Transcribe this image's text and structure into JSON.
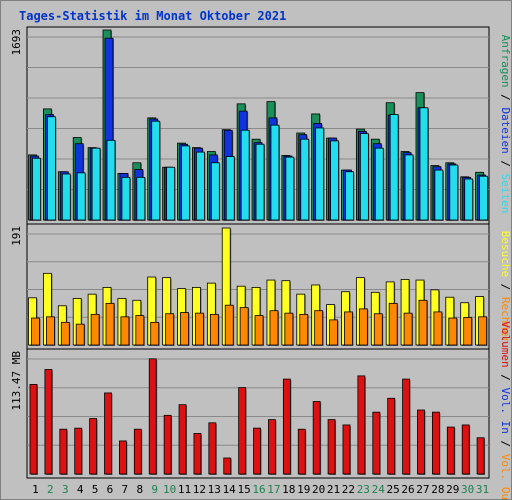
{
  "title": "Tages-Statistik im Monat Oktober 2021",
  "colors": {
    "anfragen": "#1a8f5a",
    "dateien": "#1133dd",
    "seiten": "#22ddee",
    "besuche": "#ffff22",
    "rechner": "#ff8800",
    "volumen": "#dd1111",
    "weekend_day": "#208050",
    "weekday": "#000000",
    "background": "#c0c0c0"
  },
  "chart_data": [
    {
      "type": "bar",
      "name": "top-panel",
      "ymax_label": "1693",
      "ymax": 1693,
      "right_label": [
        {
          "text": "Anfragen",
          "color": "#1a8f5a"
        },
        {
          "text": " / ",
          "color": "#000000"
        },
        {
          "text": "Dateien",
          "color": "#1133dd"
        },
        {
          "text": " / ",
          "color": "#000000"
        },
        {
          "text": "Seiten",
          "color": "#22ddee"
        }
      ],
      "series": [
        {
          "name": "Anfragen",
          "values": [
            580,
            990,
            430,
            735,
            645,
            1693,
            415,
            510,
            910,
            470,
            685,
            645,
            610,
            805,
            1035,
            720,
            1055,
            575,
            775,
            945,
            730,
            445,
            810,
            720,
            1045,
            610,
            1135,
            485,
            510,
            385,
            425
          ]
        },
        {
          "name": "Dateien",
          "values": [
            570,
            940,
            430,
            680,
            640,
            1620,
            415,
            450,
            900,
            470,
            675,
            640,
            580,
            800,
            970,
            690,
            910,
            570,
            760,
            860,
            730,
            445,
            790,
            680,
            935,
            600,
            1000,
            475,
            500,
            380,
            400
          ]
        },
        {
          "name": "Seiten",
          "values": [
            550,
            920,
            410,
            420,
            640,
            710,
            380,
            380,
            880,
            470,
            660,
            605,
            510,
            565,
            800,
            675,
            845,
            560,
            720,
            820,
            705,
            430,
            770,
            640,
            940,
            580,
            1000,
            445,
            490,
            365,
            390
          ]
        }
      ]
    },
    {
      "type": "bar",
      "name": "middle-panel",
      "ymax_label": "191",
      "ymax": 191,
      "right_label": [
        {
          "text": "Besuche",
          "color": "#ffff22"
        },
        {
          "text": " / ",
          "color": "#000000"
        },
        {
          "text": "Rechner",
          "color": "#ff8800"
        }
      ],
      "series": [
        {
          "name": "Besuche",
          "values": [
            77,
            117,
            64,
            76,
            83,
            94,
            76,
            73,
            111,
            110,
            92,
            94,
            101,
            191,
            96,
            94,
            106,
            105,
            83,
            98,
            66,
            87,
            110,
            86,
            103,
            107,
            106,
            90,
            78,
            69,
            79
          ]
        },
        {
          "name": "Rechner",
          "values": [
            44,
            46,
            37,
            34,
            50,
            68,
            46,
            48,
            37,
            51,
            53,
            52,
            50,
            65,
            61,
            48,
            56,
            52,
            50,
            56,
            41,
            54,
            59,
            51,
            68,
            52,
            73,
            54,
            44,
            45,
            46
          ]
        }
      ]
    },
    {
      "type": "bar",
      "name": "bottom-panel",
      "ymax_label": "113.47 MB",
      "ymax": 113.47,
      "right_label": [
        {
          "text": "Volumen",
          "color": "#dd1111"
        },
        {
          "text": " / ",
          "color": "#000000"
        },
        {
          "text": "Vol. In",
          "color": "#1133dd"
        },
        {
          "text": " / ",
          "color": "#000000"
        },
        {
          "text": "Vol. Out",
          "color": "#ff8800"
        }
      ],
      "series": [
        {
          "name": "Volumen",
          "values": [
            84,
            98,
            42,
            43,
            52,
            76,
            31,
            42,
            108,
            55,
            65,
            38,
            48,
            15,
            81,
            43,
            51,
            89,
            42,
            68,
            51,
            46,
            92,
            58,
            71,
            89,
            60,
            58,
            44,
            46,
            34
          ]
        }
      ]
    }
  ],
  "x_axis": {
    "days": [
      "1",
      "2",
      "3",
      "4",
      "5",
      "6",
      "7",
      "8",
      "9",
      "10",
      "11",
      "12",
      "13",
      "14",
      "15",
      "16",
      "17",
      "18",
      "19",
      "20",
      "21",
      "22",
      "23",
      "24",
      "25",
      "26",
      "27",
      "28",
      "29",
      "30",
      "31"
    ],
    "weekend": [
      "2",
      "3",
      "9",
      "10",
      "16",
      "17",
      "23",
      "24",
      "30",
      "31"
    ]
  }
}
